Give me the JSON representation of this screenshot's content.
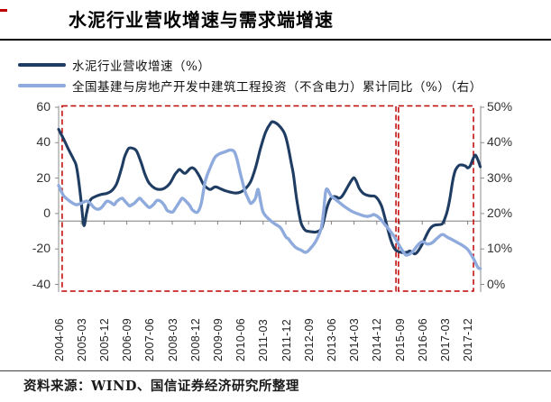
{
  "title": "水泥行业营收增速与需求端增速",
  "footer": {
    "source_label": "资料来源：WIND、国信证券经济研究所整理"
  },
  "colors": {
    "series_dark": "#1f3c63",
    "series_light": "#8faadc",
    "highlight_box": "#c00000",
    "axis": "#8c8c8c",
    "top_marker": "#c00000"
  },
  "legend": [
    {
      "label": "水泥行业营收增速（%）",
      "color": "#1f3c63"
    },
    {
      "label": "全国基建与房地产开发中建筑工程投资（不含电力）累计同比（%）（右）",
      "color": "#8faadc"
    }
  ],
  "chart_data": {
    "type": "line",
    "title": "水泥行业营收增速与需求端增速",
    "grid": false,
    "legend_position": "top-left",
    "left_axis": {
      "ticks": [
        "60",
        "40",
        "20",
        "0",
        "-20",
        "-40"
      ],
      "range": [
        -40,
        60
      ]
    },
    "right_axis": {
      "ticks": [
        "50%",
        "40%",
        "30%",
        "20%",
        "10%",
        "0%"
      ],
      "range": [
        0,
        50
      ]
    },
    "x_start": "2004-06",
    "x_label_interval_months": 9,
    "x_labels": [
      "2004-06",
      "2005-03",
      "2005-12",
      "2006-09",
      "2007-06",
      "2008-03",
      "2008-12",
      "2009-09",
      "2010-06",
      "2011-03",
      "2011-12",
      "2012-09",
      "2013-06",
      "2014-03",
      "2014-12",
      "2015-09",
      "2016-06",
      "2017-03",
      "2017-12"
    ],
    "annotations": {
      "highlight_boxes": [
        {
          "start_month": 1.4,
          "end_month": 133.6
        },
        {
          "start_month": 134.6,
          "end_month": 164.3
        }
      ]
    },
    "series": [
      {
        "name": "水泥行业营收增速（%）",
        "axis": "left",
        "color": "#1f3c63",
        "points": [
          [
            0,
            51.5
          ],
          [
            2,
            46
          ],
          [
            4,
            40
          ],
          [
            6,
            34.5
          ],
          [
            7,
            31
          ],
          [
            8,
            22
          ],
          [
            9,
            10
          ],
          [
            10,
            -2.5
          ],
          [
            11,
            4
          ],
          [
            12,
            10
          ],
          [
            13,
            12.5
          ],
          [
            15,
            14
          ],
          [
            17,
            15
          ],
          [
            19,
            15.5
          ],
          [
            21,
            17
          ],
          [
            23,
            21
          ],
          [
            25,
            30
          ],
          [
            26,
            35.5
          ],
          [
            27,
            39
          ],
          [
            28,
            41
          ],
          [
            30,
            40.5
          ],
          [
            31,
            39
          ],
          [
            32,
            35.5
          ],
          [
            33,
            31.5
          ],
          [
            34,
            27
          ],
          [
            35,
            23.5
          ],
          [
            36,
            21
          ],
          [
            38,
            18.5
          ],
          [
            40,
            17.7
          ],
          [
            42,
            18.5
          ],
          [
            44,
            21
          ],
          [
            46,
            26
          ],
          [
            47,
            27.8
          ],
          [
            48,
            28.9
          ],
          [
            50,
            26.8
          ],
          [
            52,
            29.4
          ],
          [
            53,
            29.9
          ],
          [
            54,
            29
          ],
          [
            55,
            27
          ],
          [
            56,
            24.5
          ],
          [
            57,
            21.5
          ],
          [
            58,
            19.5
          ],
          [
            60,
            17.7
          ],
          [
            62,
            19.2
          ],
          [
            64,
            18.2
          ],
          [
            66,
            17
          ],
          [
            68,
            16.2
          ],
          [
            70,
            15.7
          ],
          [
            72,
            16.2
          ],
          [
            74,
            18.2
          ],
          [
            76,
            22
          ],
          [
            78,
            30
          ],
          [
            80,
            41
          ],
          [
            82,
            50
          ],
          [
            84,
            55
          ],
          [
            85,
            55.7
          ],
          [
            87,
            54
          ],
          [
            89,
            50.5
          ],
          [
            90,
            47
          ],
          [
            91,
            41
          ],
          [
            92,
            33.5
          ],
          [
            93,
            26
          ],
          [
            94,
            15
          ],
          [
            95,
            6
          ],
          [
            96,
            -1
          ],
          [
            97,
            -4
          ],
          [
            98,
            -5.5
          ],
          [
            100,
            -6
          ],
          [
            102,
            -6.2
          ],
          [
            104,
            -4.5
          ],
          [
            105,
            0
          ],
          [
            106,
            6
          ],
          [
            107,
            10.5
          ],
          [
            108,
            13
          ],
          [
            109,
            13.7
          ],
          [
            110,
            13.5
          ],
          [
            111,
            12.8
          ],
          [
            112,
            13.5
          ],
          [
            113,
            15.5
          ],
          [
            114,
            18
          ],
          [
            115,
            20.5
          ],
          [
            116,
            22.8
          ],
          [
            117,
            24.3
          ],
          [
            118,
            22
          ],
          [
            119,
            18.5
          ],
          [
            120,
            16.5
          ],
          [
            121,
            15.2
          ],
          [
            123,
            14.2
          ],
          [
            125,
            14
          ],
          [
            126,
            13
          ],
          [
            127,
            11
          ],
          [
            128,
            8
          ],
          [
            129,
            3
          ],
          [
            130,
            -2.5
          ],
          [
            131,
            -8
          ],
          [
            132,
            -12.5
          ],
          [
            133,
            -15.5
          ],
          [
            134,
            -16.8
          ],
          [
            136,
            -17.7
          ],
          [
            138,
            -17.5
          ],
          [
            139,
            -16.8
          ],
          [
            140,
            -17.5
          ],
          [
            141,
            -18.5
          ],
          [
            142,
            -17.5
          ],
          [
            143,
            -15.5
          ],
          [
            144,
            -13
          ],
          [
            145,
            -10
          ],
          [
            146,
            -7
          ],
          [
            147,
            -4.5
          ],
          [
            148,
            -3
          ],
          [
            149,
            -2.3
          ],
          [
            151,
            -2
          ],
          [
            152,
            -1.5
          ],
          [
            153,
            1.5
          ],
          [
            154,
            6
          ],
          [
            155,
            13
          ],
          [
            156,
            22
          ],
          [
            157,
            28
          ],
          [
            158,
            30.5
          ],
          [
            159,
            31.5
          ],
          [
            161,
            31
          ],
          [
            162,
            29.8
          ],
          [
            163,
            31
          ],
          [
            164,
            34.5
          ],
          [
            165,
            37
          ],
          [
            166,
            34.5
          ],
          [
            167,
            30.5
          ]
        ]
      },
      {
        "name": "全国基建与房地产开发中建筑工程投资（不含电力）累计同比（%）（右）",
        "axis": "right",
        "color": "#8faadc",
        "points": [
          [
            0,
            30
          ],
          [
            2,
            27.1
          ],
          [
            4,
            25.8
          ],
          [
            5,
            25.3
          ],
          [
            7,
            24.6
          ],
          [
            9,
            25
          ],
          [
            11,
            25.6
          ],
          [
            12.5,
            25
          ],
          [
            14,
            23.8
          ],
          [
            15.5,
            23.3
          ],
          [
            17,
            23.8
          ],
          [
            19,
            25.5
          ],
          [
            20.5,
            25.3
          ],
          [
            22,
            24.6
          ],
          [
            23,
            25.5
          ],
          [
            25,
            26.4
          ],
          [
            26,
            25.8
          ],
          [
            28,
            24.3
          ],
          [
            29,
            24.6
          ],
          [
            30,
            25
          ],
          [
            32,
            26.4
          ],
          [
            33,
            25.8
          ],
          [
            35,
            24.3
          ],
          [
            36,
            23.8
          ],
          [
            37.5,
            24.6
          ],
          [
            39,
            25.8
          ],
          [
            40.5,
            25.5
          ],
          [
            42,
            24.3
          ],
          [
            43,
            23
          ],
          [
            45,
            22.5
          ],
          [
            46,
            23.3
          ],
          [
            48,
            25.5
          ],
          [
            49,
            26.4
          ],
          [
            50.5,
            25.5
          ],
          [
            52,
            24.3
          ],
          [
            53,
            23.1
          ],
          [
            55,
            22.5
          ],
          [
            56.5,
            25
          ],
          [
            58,
            31
          ],
          [
            60,
            35
          ],
          [
            62,
            38
          ],
          [
            64,
            39
          ],
          [
            66,
            39.5
          ],
          [
            68,
            40
          ],
          [
            69.6,
            39.5
          ],
          [
            70.7,
            37.2
          ],
          [
            71.8,
            33.9
          ],
          [
            73,
            30.5
          ],
          [
            74,
            28
          ],
          [
            75,
            26.4
          ],
          [
            76,
            25
          ],
          [
            77,
            25.4
          ],
          [
            78,
            26.5
          ],
          [
            79,
            28.9
          ],
          [
            80,
            25.5
          ],
          [
            81,
            22.5
          ],
          [
            83,
            20.7
          ],
          [
            85,
            19.5
          ],
          [
            86.5,
            18.8
          ],
          [
            88,
            18
          ],
          [
            90,
            15.5
          ],
          [
            91,
            15
          ],
          [
            92,
            14
          ],
          [
            94,
            12.5
          ],
          [
            96,
            11.8
          ],
          [
            98,
            11.2
          ],
          [
            100,
            12.5
          ],
          [
            102,
            14.5
          ],
          [
            104,
            18
          ],
          [
            105,
            23
          ],
          [
            106,
            28.9
          ],
          [
            108,
            27
          ],
          [
            110,
            25.9
          ],
          [
            113,
            24.2
          ],
          [
            116,
            22.8
          ],
          [
            119,
            21.9
          ],
          [
            122,
            21.3
          ],
          [
            124,
            21.6
          ],
          [
            125,
            21.8
          ],
          [
            127,
            20.9
          ],
          [
            129,
            19.2
          ],
          [
            131,
            17.5
          ],
          [
            133,
            15.5
          ],
          [
            135,
            13
          ],
          [
            137,
            10.8
          ],
          [
            138,
            10.4
          ],
          [
            140,
            11.2
          ],
          [
            142,
            13
          ],
          [
            144,
            14.2
          ],
          [
            146,
            13.5
          ],
          [
            148,
            13.9
          ],
          [
            150,
            15.2
          ],
          [
            152,
            16.2
          ],
          [
            154,
            15.4
          ],
          [
            156,
            14.7
          ],
          [
            158,
            13.9
          ],
          [
            160,
            13.1
          ],
          [
            162,
            12
          ],
          [
            164,
            9.8
          ],
          [
            166,
            7
          ],
          [
            167,
            6.6
          ]
        ]
      }
    ]
  }
}
